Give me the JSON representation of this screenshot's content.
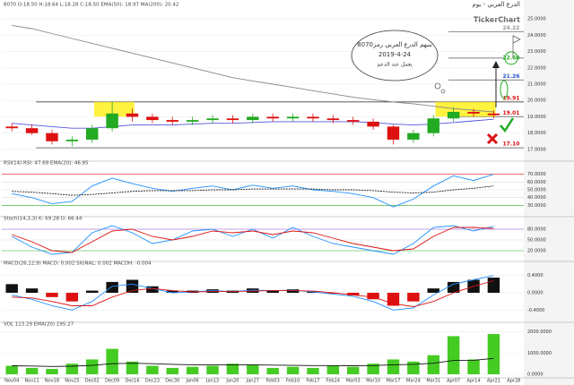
{
  "chart_data": [
    {
      "type": "candlestick",
      "title": "الدرع العربي - يوم",
      "subtitle": "8070  O:18.50  H:18.64  L:18.28  C:18.50  EMA(50): 18.97  MA(200): 20.42",
      "brand": "TickerChart",
      "annotation": [
        "سهم الدرع العربي رمز8070",
        "2019-4-24",
        "يعمل عند الدعم"
      ],
      "categories": [
        "Nov04",
        "Nov11",
        "Nov18",
        "Nov25",
        "Dec02",
        "Dec09",
        "Dec16",
        "Dec23",
        "Dec30",
        "Jan06",
        "Jan13",
        "Jan20",
        "Jan27",
        "Feb03",
        "Feb10",
        "Feb17",
        "Feb24",
        "Mar03",
        "Mar10",
        "Mar17",
        "Mar24",
        "Mar31",
        "Apr07",
        "Apr14",
        "Apr21",
        "Apr28"
      ],
      "open": [
        18.4,
        18.3,
        18.0,
        17.5,
        17.6,
        18.3,
        19.2,
        19.0,
        18.8,
        18.7,
        18.8,
        18.9,
        18.8,
        19.0,
        18.9,
        19.0,
        18.9,
        18.8,
        18.7,
        18.4,
        17.6,
        18.0,
        18.9,
        19.3,
        19.2,
        null
      ],
      "high": [
        18.6,
        18.5,
        18.2,
        17.8,
        18.5,
        19.9,
        19.5,
        19.2,
        19.0,
        19.0,
        19.1,
        19.1,
        19.2,
        19.2,
        19.2,
        19.2,
        19.1,
        19.0,
        18.9,
        18.5,
        18.2,
        19.1,
        19.6,
        19.5,
        19.4,
        null
      ],
      "low": [
        18.1,
        17.9,
        17.3,
        17.2,
        17.4,
        18.1,
        18.7,
        18.6,
        18.5,
        18.5,
        18.6,
        18.6,
        18.6,
        18.7,
        18.7,
        18.7,
        18.6,
        18.5,
        18.2,
        17.3,
        17.4,
        17.8,
        18.7,
        19.0,
        18.9,
        null
      ],
      "close": [
        18.3,
        18.0,
        17.5,
        17.6,
        18.3,
        19.2,
        19.0,
        18.8,
        18.7,
        18.8,
        18.9,
        18.8,
        19.0,
        18.9,
        19.0,
        18.9,
        18.8,
        18.7,
        18.4,
        17.6,
        18.0,
        18.9,
        19.3,
        19.2,
        19.1,
        null
      ],
      "up_color": "#22aa22",
      "down_color": "#dd1111",
      "series": [
        {
          "color": "#5555dd",
          "values": [
            18.6,
            18.5,
            18.4,
            18.3,
            18.3,
            18.4,
            18.5,
            18.5,
            18.5,
            18.55,
            18.6,
            18.6,
            18.65,
            18.7,
            18.7,
            18.7,
            18.7,
            18.7,
            18.65,
            18.55,
            18.5,
            18.55,
            18.65,
            18.75,
            18.85,
            null
          ]
        },
        {
          "color": "#888888",
          "values": [
            24.6,
            24.4,
            24.1,
            23.8,
            23.5,
            23.2,
            22.9,
            22.6,
            22.3,
            22.0,
            21.7,
            21.4,
            21.2,
            21.0,
            20.8,
            20.6,
            20.4,
            20.2,
            20.05,
            19.9,
            19.8,
            19.65,
            19.5,
            19.4,
            19.3,
            null
          ]
        }
      ],
      "levels": [
        {
          "value": 24.22,
          "label": "24.22",
          "color": "#999999",
          "span": "short"
        },
        {
          "value": 22.6,
          "label": "22.60",
          "color": "#22aa22",
          "span": "short"
        },
        {
          "value": 21.26,
          "label": "21.26",
          "color": "#2255cc",
          "span": "short"
        },
        {
          "value": 19.91,
          "label": "19.91",
          "color": "#dd1111",
          "span": "full"
        },
        {
          "value": 19.01,
          "label": "19.01",
          "color": "#dd1111",
          "span": "short"
        },
        {
          "value": 17.1,
          "label": "17.10",
          "color": "#dd1111",
          "span": "full"
        }
      ],
      "ylim": [
        16.5,
        25.5
      ],
      "yticks": [
        {
          "value": 17,
          "label": "17.0000"
        },
        {
          "value": 18,
          "label": "18.0000"
        },
        {
          "value": 19,
          "label": "19.0000"
        },
        {
          "value": 20,
          "label": "20.0000"
        },
        {
          "value": 21,
          "label": "21.0000"
        },
        {
          "value": 22,
          "label": "22.0000"
        },
        {
          "value": 23,
          "label": "23.0000"
        },
        {
          "value": 24,
          "label": "24.0000"
        },
        {
          "value": 25,
          "label": "25.0000"
        }
      ]
    },
    {
      "type": "line",
      "title": "RSI(14)  RSI: 47.69  EMA(20): 46.85",
      "series": [
        {
          "color": "#1e90ff",
          "values": [
            45,
            40,
            32,
            35,
            55,
            65,
            58,
            52,
            48,
            52,
            55,
            50,
            56,
            52,
            55,
            50,
            48,
            45,
            40,
            28,
            38,
            55,
            68,
            62,
            70,
            null
          ]
        },
        {
          "color": "#222222",
          "dash": "2,1",
          "values": [
            48,
            47,
            45,
            43,
            44,
            46,
            48,
            49,
            49,
            49,
            50,
            50,
            51,
            51,
            51,
            51,
            50,
            50,
            49,
            47,
            46,
            47,
            50,
            52,
            55,
            null
          ]
        }
      ],
      "ylim": [
        20,
        80
      ],
      "yticks": [
        {
          "value": 30,
          "label": "30.0000"
        },
        {
          "value": 40,
          "label": "40.0000"
        },
        {
          "value": 50,
          "label": "50.0000"
        },
        {
          "value": 60,
          "label": "60.0000"
        },
        {
          "value": 70,
          "label": "70.0000"
        }
      ],
      "ytick_colors": [
        "#22aa22",
        "#dddddd",
        "#dddddd",
        "#dddddd",
        "#dd1111"
      ]
    },
    {
      "type": "line",
      "title": "Stoch(14,3,3)  K: 69.28  D: 66.44",
      "series": [
        {
          "color": "#1e90ff",
          "values": [
            60,
            30,
            10,
            15,
            70,
            90,
            70,
            40,
            50,
            75,
            80,
            60,
            80,
            55,
            85,
            60,
            40,
            30,
            20,
            10,
            40,
            85,
            90,
            75,
            88,
            null
          ]
        },
        {
          "color": "#dd1111",
          "values": [
            65,
            45,
            20,
            15,
            45,
            75,
            80,
            60,
            50,
            60,
            75,
            70,
            75,
            65,
            75,
            70,
            55,
            40,
            30,
            20,
            25,
            60,
            85,
            85,
            82,
            null
          ]
        }
      ],
      "ylim": [
        0,
        100
      ],
      "yticks": [
        {
          "value": 20,
          "label": "20.0000"
        },
        {
          "value": 50,
          "label": "50.0000"
        },
        {
          "value": 80,
          "label": "80.0000"
        }
      ],
      "ytick_colors": [
        "#22aa22",
        "#dddddd",
        "#8844cc"
      ]
    },
    {
      "type": "bar",
      "title": "MACD(26,12,9)  MACD: 0.002  SIGNAL: 0.002  MACDH: -0.004",
      "values": [
        0.2,
        0.1,
        -0.1,
        -0.2,
        0.05,
        0.25,
        0.3,
        0.15,
        0.05,
        0.05,
        0.08,
        0.05,
        0.1,
        0.06,
        0.08,
        0.03,
        -0.02,
        -0.06,
        -0.15,
        -0.3,
        -0.2,
        0.1,
        0.25,
        0.3,
        0.35,
        null
      ],
      "color": "#111111",
      "neg_color": "#dd1111",
      "series": [
        {
          "color": "#1e90ff",
          "values": [
            -0.05,
            -0.15,
            -0.3,
            -0.4,
            -0.2,
            0.15,
            0.2,
            0.1,
            0.0,
            0.02,
            0.05,
            0.03,
            0.06,
            0.05,
            0.06,
            0.02,
            -0.03,
            -0.08,
            -0.2,
            -0.4,
            -0.35,
            -0.05,
            0.2,
            0.3,
            0.4,
            null
          ]
        },
        {
          "color": "#dd1111",
          "values": [
            -0.1,
            -0.12,
            -0.2,
            -0.3,
            -0.3,
            -0.1,
            0.05,
            0.1,
            0.05,
            0.02,
            0.03,
            0.03,
            0.04,
            0.05,
            0.05,
            0.04,
            0.0,
            -0.05,
            -0.1,
            -0.25,
            -0.32,
            -0.2,
            0.0,
            0.15,
            0.28,
            null
          ]
        }
      ],
      "ylim": [
        -0.6,
        0.6
      ],
      "yticks": [
        {
          "value": -0.4,
          "label": "-0.4000"
        },
        {
          "value": 0,
          "label": "0.0000"
        },
        {
          "value": 0.4,
          "label": "0.4000"
        }
      ]
    },
    {
      "type": "bar",
      "title": "VOL  113.29  EMA(20)  195.27",
      "values": [
        400,
        300,
        250,
        500,
        700,
        1200,
        600,
        400,
        300,
        350,
        400,
        500,
        450,
        300,
        350,
        300,
        400,
        350,
        500,
        700,
        600,
        900,
        1800,
        700,
        1900,
        null
      ],
      "color": "#44cc22",
      "series": [
        {
          "color": "#111111",
          "values": [
            400,
            390,
            370,
            380,
            420,
            500,
            520,
            500,
            470,
            450,
            440,
            450,
            450,
            430,
            420,
            410,
            410,
            400,
            410,
            450,
            470,
            520,
            650,
            660,
            750,
            null
          ]
        }
      ],
      "ylim": [
        0,
        2200
      ],
      "yticks": [
        {
          "value": 0,
          "label": "0.0000"
        },
        {
          "value": 1000,
          "label": "1000.0000"
        },
        {
          "value": 2000,
          "label": "2000.0000"
        }
      ]
    }
  ]
}
